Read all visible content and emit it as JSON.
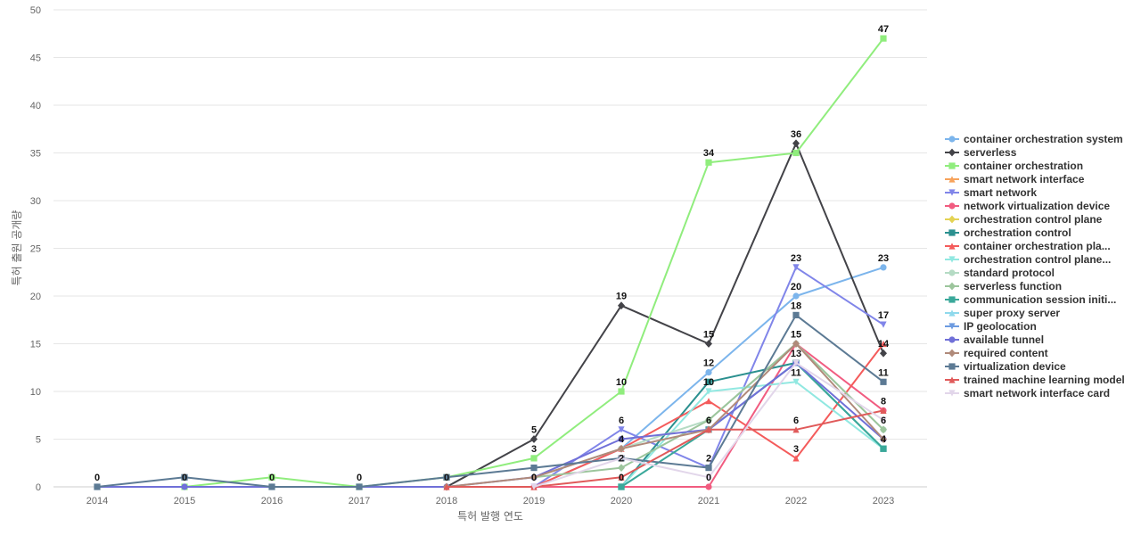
{
  "chart_data": {
    "type": "line",
    "title": "",
    "xlabel": "특허 발행 연도",
    "ylabel": "특허 출원 공개량",
    "ylim": [
      0,
      50
    ],
    "y_ticks": [
      0,
      5,
      10,
      15,
      20,
      25,
      30,
      35,
      40,
      45,
      50
    ],
    "categories": [
      "2014",
      "2015",
      "2016",
      "2017",
      "2018",
      "2019",
      "2020",
      "2021",
      "2022",
      "2023"
    ],
    "grid": true,
    "legend_position": "right",
    "series": [
      {
        "name": "container orchestration system",
        "color": "#7cb5ec",
        "marker": "circle",
        "values": [
          null,
          null,
          null,
          null,
          null,
          0,
          4,
          12,
          20,
          23
        ]
      },
      {
        "name": "serverless",
        "color": "#434348",
        "marker": "diamond",
        "values": [
          null,
          null,
          null,
          null,
          0,
          5,
          19,
          15,
          36,
          14
        ]
      },
      {
        "name": "container orchestration",
        "color": "#90ed7d",
        "marker": "square",
        "values": [
          null,
          0,
          1,
          0,
          1,
          3,
          10,
          34,
          35,
          47
        ]
      },
      {
        "name": "smart network interface",
        "color": "#f7a35c",
        "marker": "triangle",
        "values": [
          null,
          null,
          null,
          null,
          null,
          null,
          null,
          null,
          null,
          null
        ]
      },
      {
        "name": "smart network",
        "color": "#8085e9",
        "marker": "triangle-down",
        "values": [
          null,
          null,
          null,
          null,
          null,
          0,
          6,
          2,
          23,
          17
        ]
      },
      {
        "name": "network virtualization device",
        "color": "#f15c80",
        "marker": "circle",
        "values": [
          null,
          null,
          null,
          null,
          null,
          0,
          0,
          0,
          15,
          8
        ]
      },
      {
        "name": "orchestration control plane",
        "color": "#e4d354",
        "marker": "diamond",
        "values": [
          null,
          null,
          null,
          null,
          null,
          null,
          null,
          null,
          null,
          null
        ]
      },
      {
        "name": "orchestration control",
        "color": "#2b908f",
        "marker": "square",
        "values": [
          null,
          null,
          null,
          null,
          null,
          null,
          0,
          11,
          13,
          4
        ]
      },
      {
        "name": "container orchestration pla...",
        "color": "#f45b5b",
        "marker": "triangle",
        "values": [
          null,
          null,
          null,
          null,
          null,
          0,
          4,
          9,
          3,
          15
        ]
      },
      {
        "name": "orchestration control plane...",
        "color": "#91e8e1",
        "marker": "triangle-down",
        "values": [
          null,
          null,
          null,
          null,
          null,
          null,
          0,
          10,
          11,
          4
        ]
      },
      {
        "name": "standard protocol",
        "color": "#b5dbc4",
        "marker": "circle",
        "values": [
          null,
          null,
          null,
          null,
          null,
          1,
          4,
          7,
          15,
          6
        ]
      },
      {
        "name": "serverless function",
        "color": "#9cc59c",
        "marker": "diamond",
        "values": [
          null,
          null,
          null,
          null,
          null,
          1,
          2,
          7,
          15,
          6
        ]
      },
      {
        "name": "communication session initi...",
        "color": "#3aa89a",
        "marker": "square",
        "values": [
          null,
          null,
          null,
          null,
          null,
          null,
          0,
          6,
          13,
          4
        ]
      },
      {
        "name": "super proxy server",
        "color": "#8fd9ec",
        "marker": "triangle",
        "values": [
          null,
          null,
          null,
          null,
          null,
          null,
          null,
          null,
          null,
          null
        ]
      },
      {
        "name": "IP geolocation",
        "color": "#6d9be0",
        "marker": "triangle-down",
        "values": [
          null,
          null,
          null,
          null,
          null,
          null,
          null,
          null,
          null,
          null
        ]
      },
      {
        "name": "available tunnel",
        "color": "#7070d8",
        "marker": "circle",
        "values": [
          0,
          0,
          0,
          0,
          0,
          1,
          5,
          6,
          13,
          5
        ]
      },
      {
        "name": "required content",
        "color": "#b08a7a",
        "marker": "diamond",
        "values": [
          null,
          null,
          null,
          null,
          0,
          1,
          4,
          6,
          15,
          5
        ]
      },
      {
        "name": "virtualization device",
        "color": "#5c7a94",
        "marker": "square",
        "values": [
          0,
          1,
          0,
          0,
          1,
          2,
          3,
          2,
          18,
          11
        ]
      },
      {
        "name": "trained machine learning model",
        "color": "#e05a5a",
        "marker": "triangle",
        "values": [
          null,
          null,
          null,
          null,
          0,
          0,
          1,
          6,
          6,
          8
        ]
      },
      {
        "name": "smart network interface card",
        "color": "#e2d6ea",
        "marker": "triangle-down",
        "values": [
          null,
          null,
          null,
          null,
          null,
          0,
          3,
          1,
          13,
          7
        ]
      }
    ],
    "data_labels": [
      {
        "x": "2014",
        "y": 0,
        "text": "0"
      },
      {
        "x": "2015",
        "y": 0,
        "text": "0"
      },
      {
        "x": "2016",
        "y": 0,
        "text": "0"
      },
      {
        "x": "2017",
        "y": 0,
        "text": "0"
      },
      {
        "x": "2018",
        "y": 0,
        "text": "0"
      },
      {
        "x": "2019",
        "y": 5,
        "text": "5"
      },
      {
        "x": "2019",
        "y": 3,
        "text": "3"
      },
      {
        "x": "2019",
        "y": 0,
        "text": "0"
      },
      {
        "x": "2020",
        "y": 19,
        "text": "19"
      },
      {
        "x": "2020",
        "y": 10,
        "text": "10"
      },
      {
        "x": "2020",
        "y": 6,
        "text": "6"
      },
      {
        "x": "2020",
        "y": 4,
        "text": "4"
      },
      {
        "x": "2020",
        "y": 2,
        "text": "2"
      },
      {
        "x": "2020",
        "y": 0,
        "text": "0"
      },
      {
        "x": "2021",
        "y": 34,
        "text": "34"
      },
      {
        "x": "2021",
        "y": 15,
        "text": "15"
      },
      {
        "x": "2021",
        "y": 12,
        "text": "12"
      },
      {
        "x": "2021",
        "y": 10,
        "text": "10"
      },
      {
        "x": "2021",
        "y": 6,
        "text": "6"
      },
      {
        "x": "2021",
        "y": 2,
        "text": "2"
      },
      {
        "x": "2021",
        "y": 0,
        "text": "0"
      },
      {
        "x": "2022",
        "y": 36,
        "text": "36"
      },
      {
        "x": "2022",
        "y": 23,
        "text": "23"
      },
      {
        "x": "2022",
        "y": 20,
        "text": "20"
      },
      {
        "x": "2022",
        "y": 18,
        "text": "18"
      },
      {
        "x": "2022",
        "y": 15,
        "text": "15"
      },
      {
        "x": "2022",
        "y": 13,
        "text": "13"
      },
      {
        "x": "2022",
        "y": 11,
        "text": "11"
      },
      {
        "x": "2022",
        "y": 6,
        "text": "6"
      },
      {
        "x": "2022",
        "y": 3,
        "text": "3"
      },
      {
        "x": "2023",
        "y": 47,
        "text": "47"
      },
      {
        "x": "2023",
        "y": 23,
        "text": "23"
      },
      {
        "x": "2023",
        "y": 17,
        "text": "17"
      },
      {
        "x": "2023",
        "y": 14,
        "text": "14"
      },
      {
        "x": "2023",
        "y": 11,
        "text": "11"
      },
      {
        "x": "2023",
        "y": 8,
        "text": "8"
      },
      {
        "x": "2023",
        "y": 6,
        "text": "6"
      },
      {
        "x": "2023",
        "y": 4,
        "text": "4"
      }
    ]
  }
}
